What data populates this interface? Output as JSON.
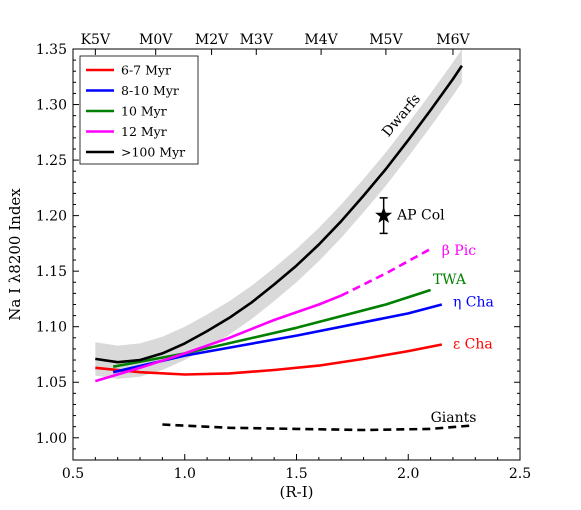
{
  "chart_data": {
    "type": "line",
    "xlabel": "(R-I)",
    "ylabel": "Na I λ8200 Index",
    "xlim": [
      0.5,
      2.5
    ],
    "ylim": [
      0.98,
      1.35
    ],
    "x_ticks": [
      "0.5",
      "1.0",
      "1.5",
      "2.0",
      "2.5"
    ],
    "y_ticks": [
      "1.00",
      "1.05",
      "1.10",
      "1.15",
      "1.20",
      "1.25",
      "1.30",
      "1.35"
    ],
    "top_axis": {
      "labels": [
        "K5V",
        "M0V",
        "M2V",
        "M3V",
        "M4V",
        "M5V",
        "M6V"
      ],
      "x": [
        0.6,
        0.87,
        1.12,
        1.32,
        1.61,
        1.9,
        2.2
      ]
    },
    "grid": false,
    "legend_position": "top-left",
    "legend": [
      {
        "label": "6-7 Myr",
        "color": "#ff0000"
      },
      {
        "label": "8-10 Myr",
        "color": "#0000ff"
      },
      {
        "label": "10 Myr",
        "color": "#008000"
      },
      {
        "label": "12 Myr",
        "color": "#ff00ff"
      },
      {
        "label": ">100 Myr",
        "color": "#000000"
      }
    ],
    "series": [
      {
        "color": "#ff0000",
        "x": [
          0.6,
          0.8,
          1.0,
          1.2,
          1.4,
          1.6,
          1.8,
          2.0,
          2.15
        ],
        "y": [
          1.063,
          1.059,
          1.057,
          1.058,
          1.061,
          1.065,
          1.071,
          1.078,
          1.084
        ]
      },
      {
        "color": "#0000ff",
        "x": [
          0.68,
          1.0,
          1.5,
          2.0,
          2.15
        ],
        "y": [
          1.059,
          1.074,
          1.092,
          1.112,
          1.12
        ]
      },
      {
        "color": "#008000",
        "x": [
          0.68,
          1.0,
          1.5,
          1.9,
          2.1
        ],
        "y": [
          1.064,
          1.076,
          1.099,
          1.12,
          1.133
        ]
      },
      {
        "color": "#ff00ff",
        "x": [
          0.6,
          0.8,
          1.0,
          1.2,
          1.4,
          1.6,
          1.7
        ],
        "y": [
          1.051,
          1.063,
          1.076,
          1.09,
          1.106,
          1.12,
          1.128
        ]
      },
      {
        "color": "#ff00ff",
        "dashed": true,
        "x": [
          1.7,
          1.9,
          2.1
        ],
        "y": [
          1.128,
          1.148,
          1.17
        ]
      },
      {
        "color": "#000000",
        "x": [
          0.6,
          0.7,
          0.8,
          0.9,
          1.0,
          1.1,
          1.2,
          1.3,
          1.4,
          1.5,
          1.6,
          1.7,
          1.8,
          1.9,
          2.0,
          2.1,
          2.2,
          2.24
        ],
        "y": [
          1.071,
          1.068,
          1.07,
          1.076,
          1.085,
          1.096,
          1.108,
          1.122,
          1.138,
          1.155,
          1.174,
          1.195,
          1.218,
          1.242,
          1.268,
          1.295,
          1.323,
          1.335
        ]
      },
      {
        "color": "#000000",
        "dashed": true,
        "x": [
          0.9,
          1.2,
          1.5,
          1.8,
          2.1,
          2.28
        ],
        "y": [
          1.012,
          1.009,
          1.008,
          1.007,
          1.008,
          1.011
        ]
      }
    ],
    "dwarf_band": {
      "color": "#d9d9d9",
      "x": [
        0.6,
        0.7,
        0.8,
        0.9,
        1.0,
        1.1,
        1.2,
        1.3,
        1.4,
        1.5,
        1.6,
        1.7,
        1.8,
        1.9,
        2.0,
        2.1,
        2.2,
        2.24
      ],
      "half_width": 0.015
    },
    "point": {
      "x": 1.89,
      "y": 1.2,
      "yerr": 0.016,
      "label": "AP Col"
    },
    "annotations": [
      {
        "text": "Dwarfs",
        "x": 1.97,
        "y": 1.29,
        "color": "#000000",
        "rotate": -50
      },
      {
        "text": "AP Col",
        "x": 1.95,
        "y": 1.2,
        "color": "#000000"
      },
      {
        "text": "β Pic",
        "x": 2.15,
        "y": 1.168,
        "color": "#ff00ff"
      },
      {
        "text": "TWA",
        "x": 2.11,
        "y": 1.142,
        "color": "#008000"
      },
      {
        "text": "η Cha",
        "x": 2.2,
        "y": 1.122,
        "color": "#0000ff"
      },
      {
        "text": "ε Cha",
        "x": 2.2,
        "y": 1.084,
        "color": "#ff0000"
      },
      {
        "text": "Giants",
        "x": 2.1,
        "y": 1.018,
        "color": "#000000"
      }
    ]
  }
}
